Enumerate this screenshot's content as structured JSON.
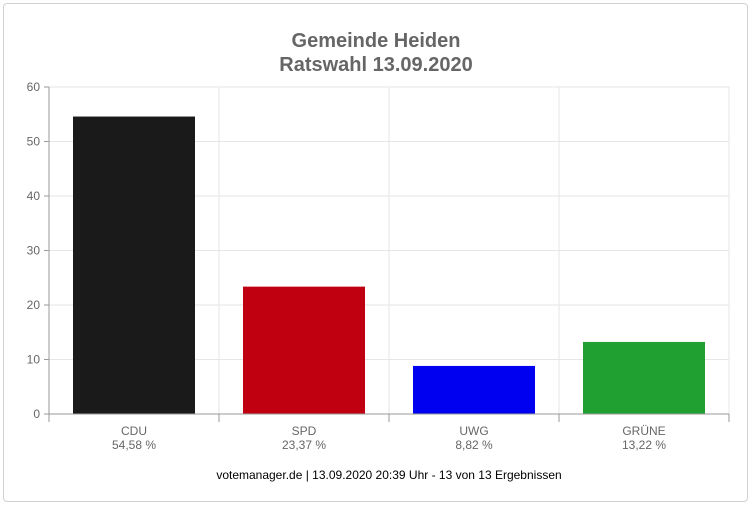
{
  "chart_data": {
    "type": "bar",
    "title": "Gemeinde Heiden",
    "subtitle": "Ratswahl 13.09.2020",
    "categories": [
      "CDU",
      "SPD",
      "UWG",
      "GRÜNE"
    ],
    "values": [
      54.58,
      23.37,
      8.82,
      13.22
    ],
    "value_labels": [
      "54,58 %",
      "23,37 %",
      "8,82 %",
      "13,22 %"
    ],
    "colors": [
      "#1a1a1a",
      "#c00010",
      "#0000f0",
      "#20a030"
    ],
    "ylim": [
      0,
      60
    ],
    "yticks": [
      0,
      10,
      20,
      30,
      40,
      50,
      60
    ],
    "grid": true,
    "legend": "none",
    "footer": "votemanager.de | 13.09.2020 20:39 Uhr - 13 von 13 Ergebnissen"
  }
}
